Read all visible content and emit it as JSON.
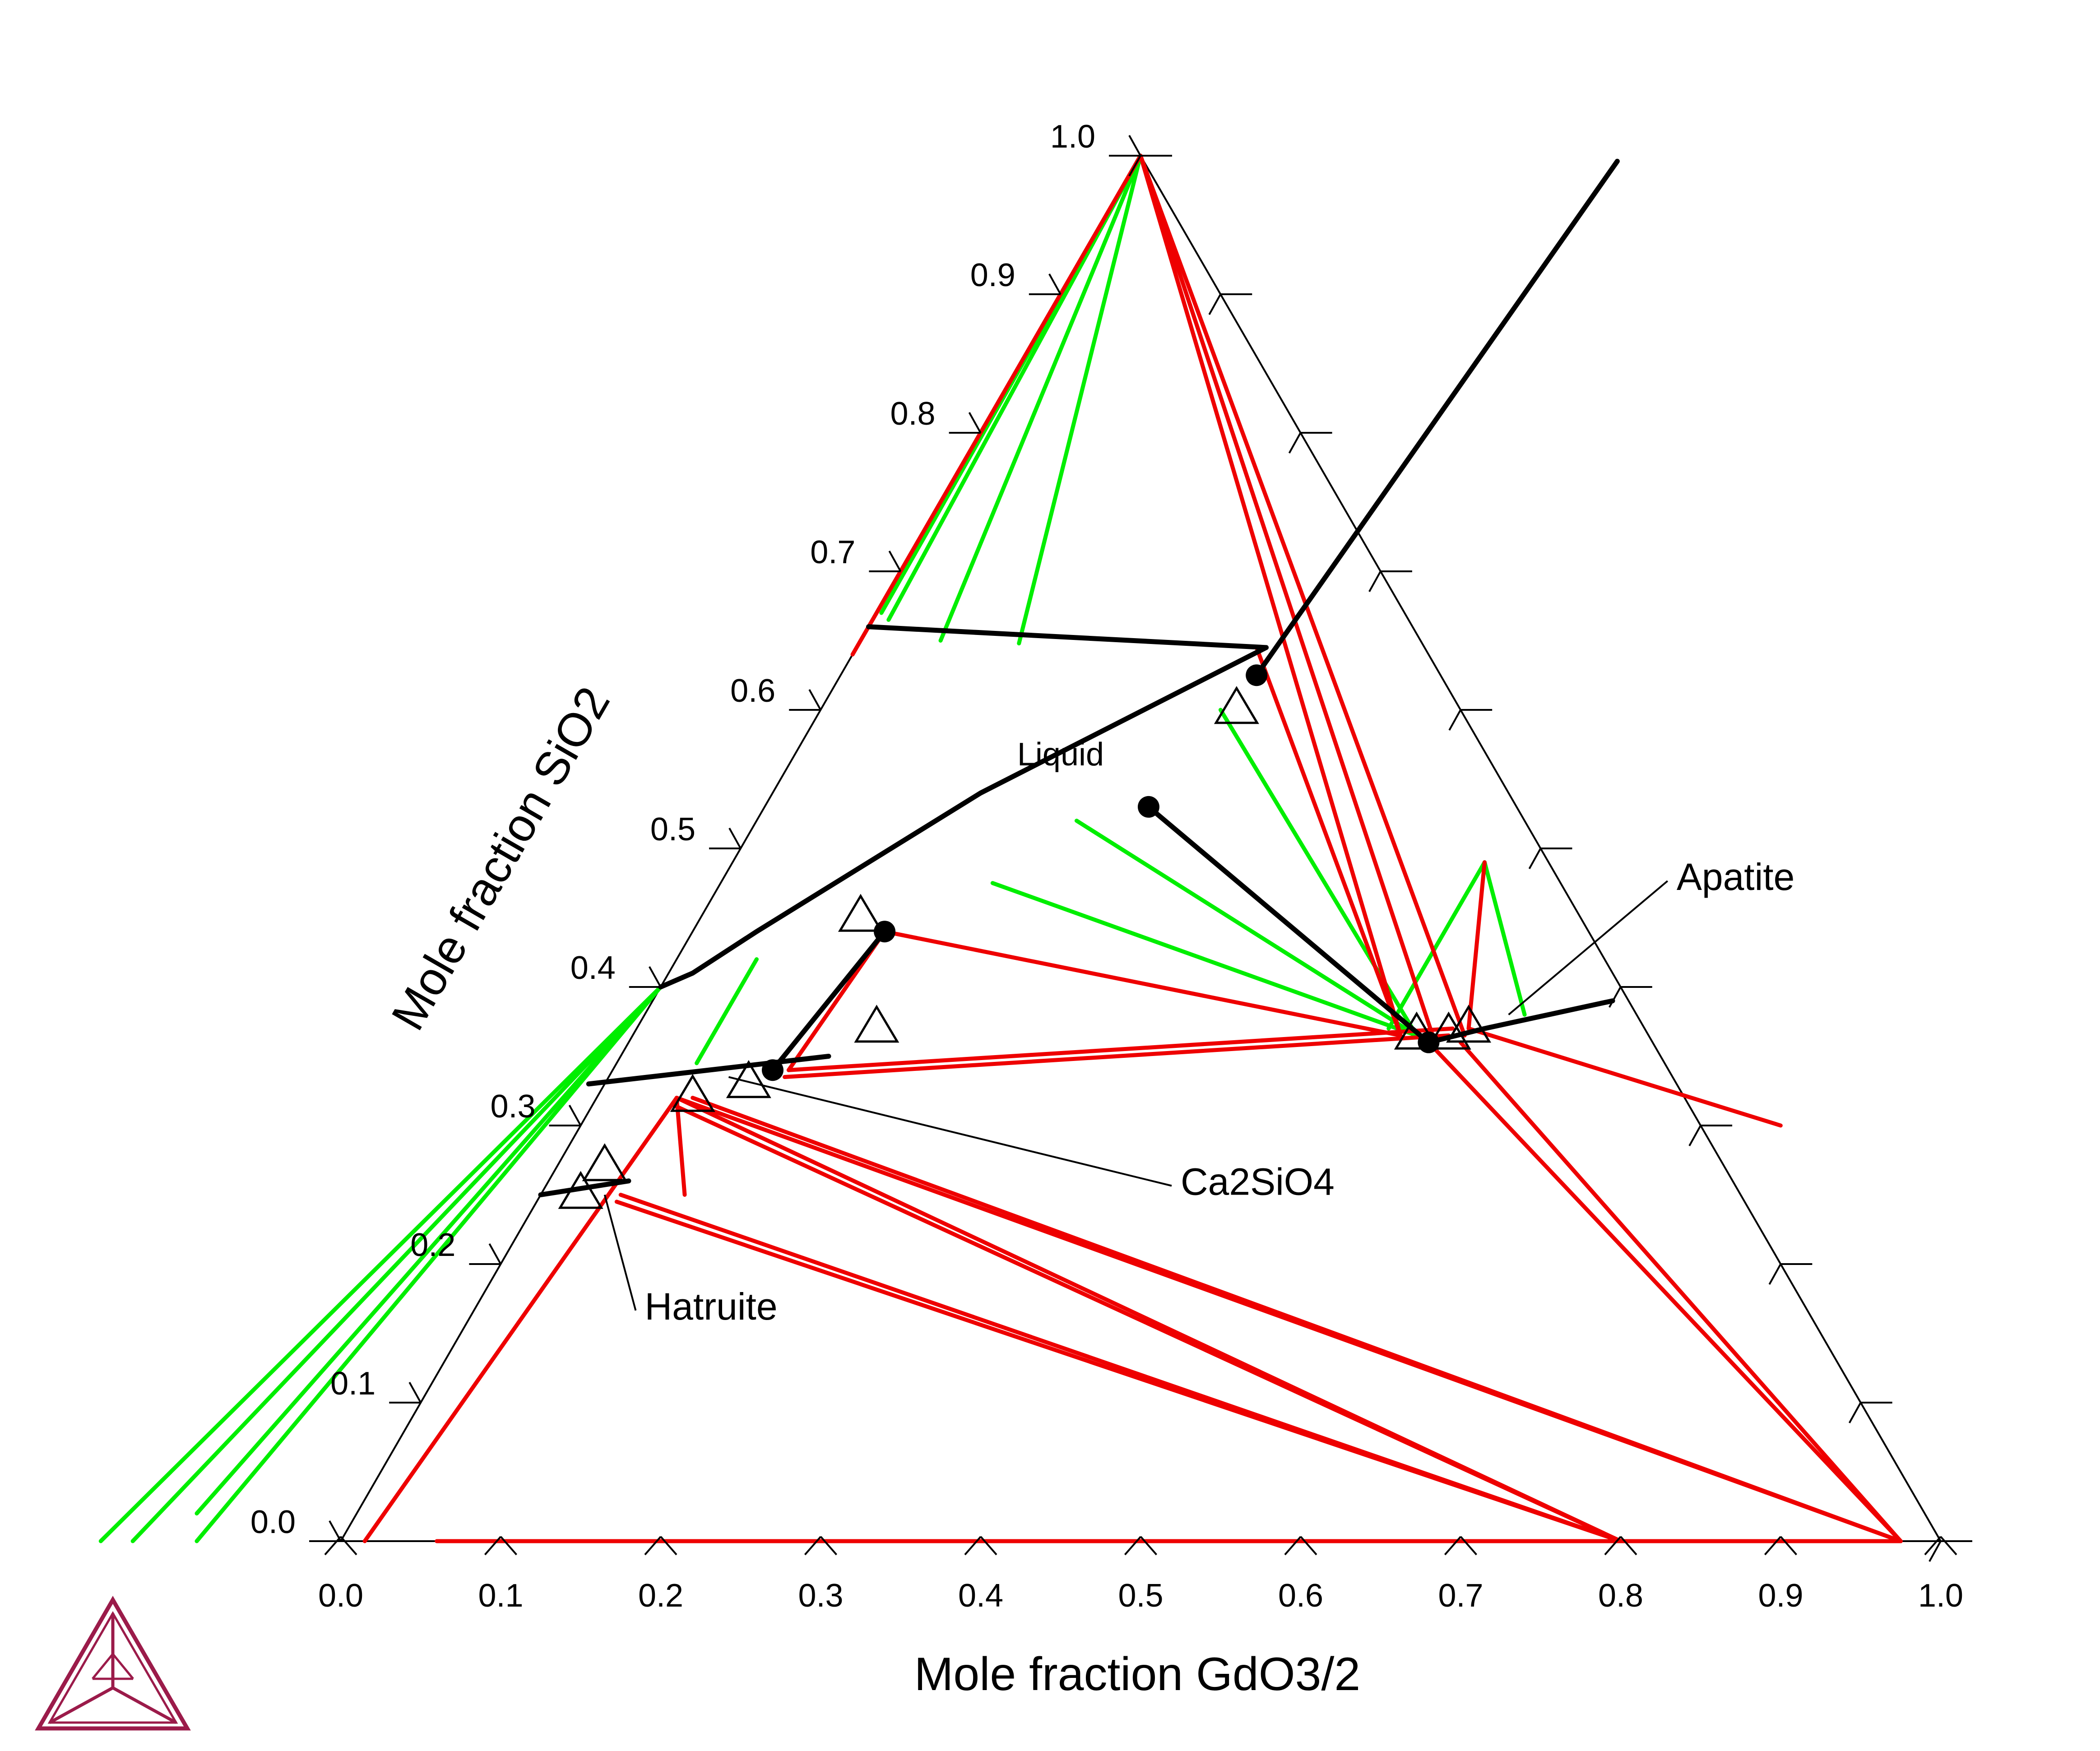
{
  "chart_data": {
    "type": "ternary",
    "xlabel": "Mole fraction GdO3/2",
    "ylabel": "Mole fraction SiO2",
    "ticks": [
      "0.0",
      "0.1",
      "0.2",
      "0.3",
      "0.4",
      "0.5",
      "0.6",
      "0.7",
      "0.8",
      "0.9",
      "1.0"
    ],
    "annotations": [
      {
        "text": "Liquid",
        "point": [
          0.17,
          0.56
        ]
      },
      {
        "text": "Apatite",
        "point": [
          0.54,
          0.38
        ],
        "label_at": [
          0.6,
          0.47
        ]
      },
      {
        "text": "Ca2SiO4",
        "point": [
          0.075,
          0.335
        ],
        "label_at": [
          0.4,
          0.25
        ]
      },
      {
        "text": "Hatruite",
        "point": [
          0.04,
          0.25
        ],
        "label_at": [
          0.11,
          0.16
        ]
      }
    ],
    "colors": {
      "green": "#00ee00",
      "red": "#ee0000",
      "black": "#000000",
      "logo": "#9b1b4a"
    },
    "phase_boundaries": [
      [
        [
          0.0,
          0.66
        ],
        [
          0.256,
          0.645
        ]
      ],
      [
        [
          0.256,
          0.645
        ],
        [
          0.13,
          0.54
        ],
        [
          0.04,
          0.44
        ],
        [
          0.015,
          0.41
        ],
        [
          0.0,
          0.4
        ]
      ],
      [
        [
          -0.01,
          0.33
        ],
        [
          0.13,
          0.35
        ]
      ],
      [
        [
          0.12,
          0.44
        ],
        [
          0.1,
          0.34
        ]
      ],
      [
        [
          0.0,
          0.25
        ],
        [
          0.05,
          0.26
        ]
      ],
      [
        [
          0.5,
          0.36
        ],
        [
          0.53,
          0.37
        ],
        [
          0.6,
          0.39
        ]
      ]
    ],
    "black_lines": [
      [
        [
          0.3,
          0.996
        ],
        [
          0.26,
          0.625
        ]
      ],
      [
        [
          0.24,
          0.53
        ],
        [
          0.5,
          0.36
        ]
      ]
    ],
    "points": [
      [
        0.26,
        0.625
      ],
      [
        0.24,
        0.53
      ],
      [
        0.12,
        0.44
      ],
      [
        0.1,
        0.34
      ],
      [
        0.5,
        0.36
      ]
    ],
    "triangle_markers": [
      [
        0.26,
        0.6
      ],
      [
        0.1,
        0.45
      ],
      [
        0.15,
        0.37
      ],
      [
        0.09,
        0.33
      ],
      [
        0.06,
        0.32
      ],
      [
        0.03,
        0.27
      ],
      [
        0.025,
        0.25
      ],
      [
        0.49,
        0.365
      ],
      [
        0.51,
        0.365
      ],
      [
        0.52,
        0.37
      ]
    ],
    "green_tie_lines": [
      [
        [
          0.0,
          1.0
        ],
        [
          0.003,
          0.67
        ]
      ],
      [
        [
          0.0,
          1.0
        ],
        [
          0.01,
          0.665
        ]
      ],
      [
        [
          0.0,
          1.0
        ],
        [
          0.05,
          0.65
        ]
      ],
      [
        [
          0.0,
          1.0
        ],
        [
          0.1,
          0.648
        ]
      ],
      [
        [
          0.25,
          0.6
        ],
        [
          0.49,
          0.365
        ]
      ],
      [
        [
          0.2,
          0.52
        ],
        [
          0.49,
          0.365
        ]
      ],
      [
        [
          0.17,
          0.475
        ],
        [
          0.49,
          0.365
        ]
      ],
      [
        [
          0.05,
          0.42
        ],
        [
          0.05,
          0.345
        ]
      ],
      [
        [
          0.0,
          0.4
        ],
        [
          -0.1,
          0.02
        ]
      ],
      [
        [
          0.0,
          0.4
        ],
        [
          -0.13,
          0.0
        ]
      ],
      [
        [
          0.0,
          0.4
        ],
        [
          -0.15,
          0.0
        ]
      ],
      [
        [
          0.0,
          0.4
        ],
        [
          -0.09,
          0.0
        ]
      ],
      [
        [
          0.47,
          0.49
        ],
        [
          0.47,
          0.37
        ]
      ],
      [
        [
          0.47,
          0.49
        ],
        [
          0.55,
          0.38
        ]
      ]
    ],
    "red_tie_lines": [
      [
        [
          0.0,
          1.0
        ],
        [
          0.0,
          0.64
        ]
      ],
      [
        [
          0.0,
          1.0
        ],
        [
          0.48,
          0.365
        ]
      ],
      [
        [
          0.0,
          1.0
        ],
        [
          0.5,
          0.365
        ]
      ],
      [
        [
          0.0,
          1.0
        ],
        [
          0.52,
          0.365
        ]
      ],
      [
        [
          0.25,
          0.645
        ],
        [
          0.48,
          0.365
        ]
      ],
      [
        [
          0.12,
          0.44
        ],
        [
          0.48,
          0.365
        ]
      ],
      [
        [
          0.12,
          0.44
        ],
        [
          0.11,
          0.34
        ]
      ],
      [
        [
          0.11,
          0.34
        ],
        [
          0.51,
          0.37
        ]
      ],
      [
        [
          0.11,
          0.335
        ],
        [
          0.51,
          0.365
        ]
      ],
      [
        [
          0.05,
          0.32
        ],
        [
          0.09,
          0.25
        ]
      ],
      [
        [
          0.05,
          0.32
        ],
        [
          0.015,
          0.0
        ]
      ],
      [
        [
          0.05,
          0.32
        ],
        [
          0.8,
          0.0
        ]
      ],
      [
        [
          0.05,
          0.315
        ],
        [
          0.8,
          0.0
        ]
      ],
      [
        [
          0.05,
          0.32
        ],
        [
          0.975,
          0.0
        ]
      ],
      [
        [
          0.06,
          0.32
        ],
        [
          0.975,
          0.0
        ]
      ],
      [
        [
          0.05,
          0.25
        ],
        [
          0.8,
          0.0
        ]
      ],
      [
        [
          0.05,
          0.245
        ],
        [
          0.8,
          0.0
        ]
      ],
      [
        [
          0.5,
          0.36
        ],
        [
          0.975,
          0.0
        ]
      ],
      [
        [
          0.52,
          0.36
        ],
        [
          0.975,
          0.0
        ]
      ],
      [
        [
          0.52,
          0.37
        ],
        [
          0.75,
          0.3
        ]
      ],
      [
        [
          0.52,
          0.37
        ],
        [
          0.47,
          0.49
        ]
      ],
      [
        [
          0.06,
          0.0
        ],
        [
          0.975,
          0.0
        ]
      ]
    ]
  }
}
